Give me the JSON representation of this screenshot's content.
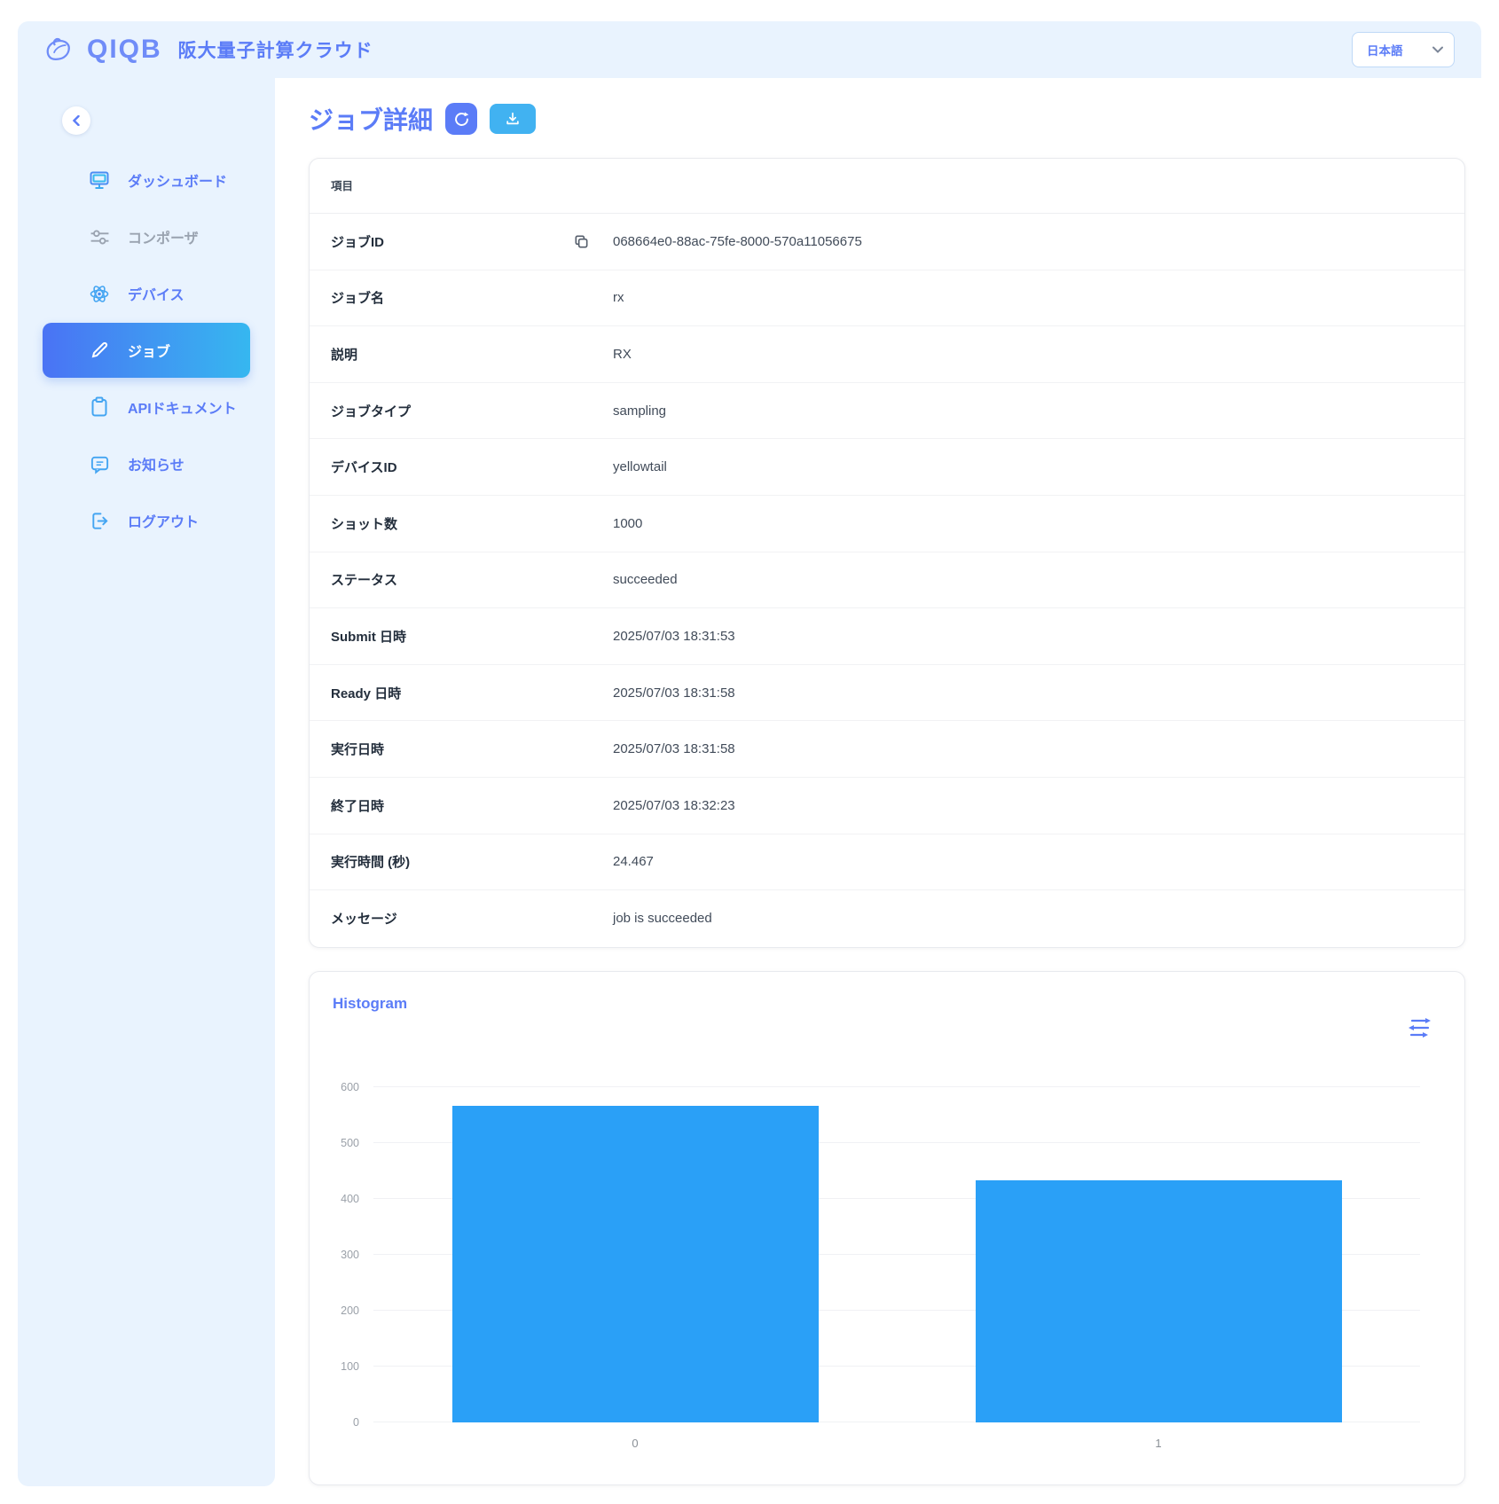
{
  "header": {
    "logo_text": "QIQB",
    "app_title": "阪大量子計算クラウド",
    "language_selector": {
      "value": "日本語"
    }
  },
  "sidebar": {
    "items": [
      {
        "label": "ダッシュボード",
        "icon": "dashboard-monitor-icon",
        "active": false,
        "muted": false
      },
      {
        "label": "コンポーザ",
        "icon": "composer-sliders-icon",
        "active": false,
        "muted": true
      },
      {
        "label": "デバイス",
        "icon": "device-atom-icon",
        "active": false,
        "muted": false
      },
      {
        "label": "ジョブ",
        "icon": "job-pencil-icon",
        "active": true,
        "muted": false
      },
      {
        "label": "APIドキュメント",
        "icon": "api-clipboard-icon",
        "active": false,
        "muted": false
      },
      {
        "label": "お知らせ",
        "icon": "announcement-chat-icon",
        "active": false,
        "muted": false
      },
      {
        "label": "ログアウト",
        "icon": "logout-icon",
        "active": false,
        "muted": false
      }
    ]
  },
  "main": {
    "page_title": "ジョブ詳細",
    "detail_table": {
      "header": "項目",
      "rows": [
        {
          "label": "ジョブID",
          "value": "068664e0-88ac-75fe-8000-570a11056675",
          "copyable": true
        },
        {
          "label": "ジョブ名",
          "value": "rx"
        },
        {
          "label": "説明",
          "value": "RX"
        },
        {
          "label": "ジョブタイプ",
          "value": "sampling"
        },
        {
          "label": "デバイスID",
          "value": "yellowtail"
        },
        {
          "label": "ショット数",
          "value": "1000"
        },
        {
          "label": "ステータス",
          "value": "succeeded"
        },
        {
          "label": "Submit 日時",
          "value": "2025/07/03 18:31:53"
        },
        {
          "label": "Ready 日時",
          "value": "2025/07/03 18:31:58"
        },
        {
          "label": "実行日時",
          "value": "2025/07/03 18:31:58"
        },
        {
          "label": "終了日時",
          "value": "2025/07/03 18:32:23"
        },
        {
          "label": "実行時間 (秒)",
          "value": "24.467"
        },
        {
          "label": "メッセージ",
          "value": "job is succeeded"
        }
      ]
    },
    "histogram": {
      "title": "Histogram"
    }
  },
  "chart_data": {
    "type": "bar",
    "title": "Histogram",
    "categories": [
      "0",
      "1"
    ],
    "values": [
      567,
      433
    ],
    "xlabel": "",
    "ylabel": "",
    "ylim": [
      0,
      600
    ],
    "yticks": [
      0,
      100,
      200,
      300,
      400,
      500,
      600
    ],
    "grid": true,
    "legend_position": "none",
    "bar_color": "#2AA0F7",
    "bar_width_fraction": 0.7
  },
  "colors": {
    "primary_blue": "#5B7CF7",
    "panel_light_blue": "#E9F3FE",
    "active_gradient_start": "#4A73F4",
    "active_gradient_end": "#36B7F0",
    "download_button_blue": "#41B2F1",
    "histogram_bar_blue": "#2AA0F7",
    "muted_gray": "#9AA3B0"
  },
  "icons": [
    "qiqb-bird-icon",
    "chevron-down-icon",
    "chevron-left-icon",
    "dashboard-monitor-icon",
    "composer-sliders-icon",
    "device-atom-icon",
    "job-pencil-icon",
    "api-clipboard-icon",
    "announcement-chat-icon",
    "logout-icon",
    "refresh-icon",
    "download-icon",
    "copy-icon",
    "chart-settings-sliders-icon"
  ]
}
